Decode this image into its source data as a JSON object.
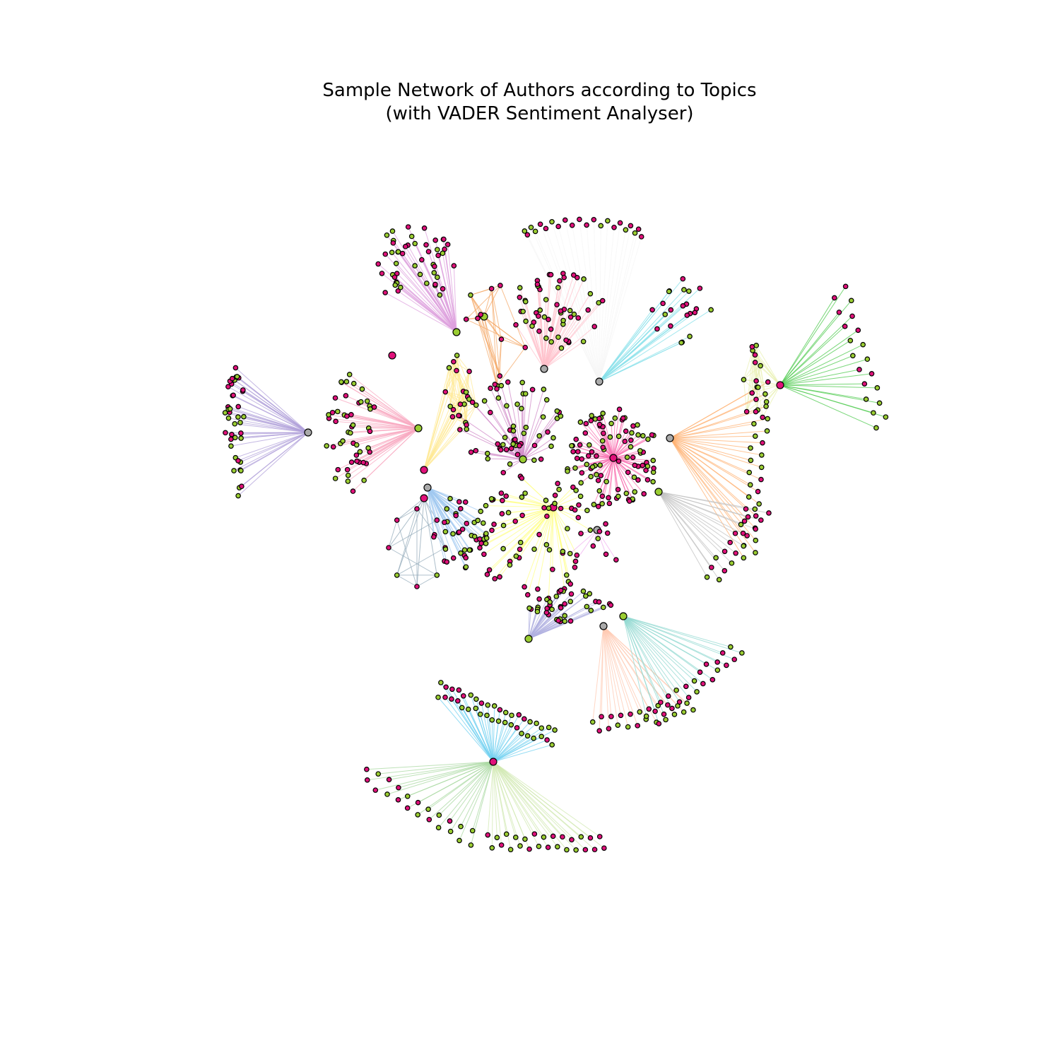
{
  "figure": {
    "title_line1": "Sample Network of Authors according to Topics",
    "title_line2": "(with VADER Sentiment Analyser)"
  },
  "sentiment_colors": {
    "positive": "#9ACD32",
    "negative": "#E0117A",
    "neutral": "#AAAAAA"
  },
  "node_outline_color": "#000000",
  "topic_group_colors": [
    "#F5F5F5",
    "#DDA0DD",
    "#F4A460",
    "#FFC0CB",
    "#87E0EA",
    "#4CC94C",
    "#B0A0DA",
    "#F8A8C0",
    "#FFE890",
    "#FFE070",
    "#E8F0B0",
    "#FFB070",
    "#C0C0C0",
    "#90A8B8",
    "#A0C8F0",
    "#D08AC8",
    "#FFFF88",
    "#F0B0F0",
    "#B0B0E0",
    "#70D0F0",
    "#FFC8B0",
    "#90D8D0",
    "#A8D8A0",
    "#D0E8B0",
    "#F870B0"
  ]
}
